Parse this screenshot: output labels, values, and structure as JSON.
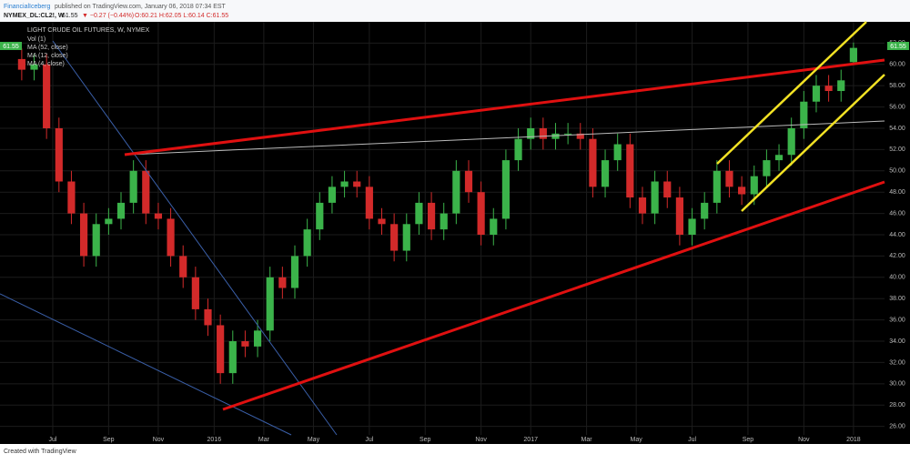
{
  "header": {
    "author": "FinancialIceberg",
    "published": "published on TradingView.com, January 06, 2018 07:34 EST",
    "symbol": "NYMEX_DL:CL2!, W",
    "last": "61.55",
    "change": "▼ −0.27 (−0.44%)",
    "ohlc": "O:60.21 H:62.05 L:60.14 C:61.55"
  },
  "chart_data": {
    "type": "candlestick",
    "title": "LIGHT CRUDE OIL FUTURES, W, NYMEX",
    "legend": [
      "Vol (1)",
      "MA (52, close)",
      "MA (12, close)",
      "MA (4, close)"
    ],
    "price_label": "61.55",
    "up_color": "#3bb34a",
    "down_color": "#d32a2a",
    "x": [
      2,
      4,
      6,
      8,
      10,
      12,
      14,
      16,
      18,
      20,
      22,
      24,
      26,
      28,
      30,
      32,
      34,
      36,
      38,
      40,
      42,
      44,
      46,
      48,
      50,
      52,
      54,
      56,
      58,
      60,
      62,
      64,
      66,
      68,
      70,
      72,
      74,
      76,
      78,
      80,
      82,
      84,
      86,
      88,
      90,
      92,
      94,
      96,
      98,
      100,
      102,
      104,
      106,
      108,
      110,
      112,
      114,
      116,
      118,
      120,
      122,
      124,
      126,
      128,
      130,
      132,
      134,
      136
    ],
    "open": [
      60.5,
      59.5,
      60,
      54,
      49,
      46,
      42,
      45,
      45.5,
      47,
      50,
      46,
      45.5,
      42,
      40,
      37,
      35.5,
      31,
      34,
      33.5,
      35,
      40,
      39,
      42,
      44.5,
      47,
      48.5,
      49,
      48.5,
      45.5,
      45,
      42.5,
      45,
      47,
      44.5,
      46,
      50,
      48,
      44,
      45.5,
      51,
      53,
      54,
      53,
      53.5,
      53.5,
      53,
      48.5,
      51,
      52.5,
      47.5,
      46,
      49,
      47.5,
      44,
      45.5,
      47,
      50,
      48.5,
      47.8,
      49.5,
      51,
      51.5,
      54,
      56.5,
      58,
      57.5,
      60.21
    ],
    "high": [
      61.5,
      61,
      61,
      55,
      50,
      47,
      46,
      46.5,
      48,
      51,
      51,
      47,
      46.5,
      43,
      41,
      38,
      36.5,
      35,
      35,
      36,
      41,
      41,
      43,
      45.5,
      48,
      49.5,
      50,
      50,
      49.5,
      46.5,
      46,
      46,
      48,
      48,
      47,
      51,
      51,
      49,
      46.5,
      52,
      54,
      55,
      55,
      54.5,
      54.5,
      54.5,
      54,
      52,
      53.5,
      53.5,
      48.5,
      50,
      50,
      48.5,
      46.5,
      48,
      51,
      51,
      49.5,
      50.5,
      52,
      52.5,
      55,
      57.5,
      59,
      59,
      59.5,
      62.05
    ],
    "low": [
      58.5,
      58.5,
      53,
      48,
      45,
      41,
      41,
      44,
      44.5,
      46,
      45,
      44.5,
      41,
      39,
      36,
      34.5,
      30,
      30,
      32.5,
      32.5,
      34,
      38,
      38,
      41,
      43.5,
      46,
      47.5,
      47.5,
      44.5,
      44,
      41.5,
      41.5,
      44,
      43.5,
      43.5,
      45,
      47,
      43,
      43,
      44.5,
      50,
      52,
      52,
      52,
      52.5,
      52,
      47.5,
      47.5,
      50,
      46.5,
      45,
      45,
      46.5,
      43,
      43,
      44.5,
      46,
      47.5,
      46.8,
      46.8,
      48.5,
      50,
      50.5,
      53,
      55.5,
      56.5,
      56.5,
      60.14
    ],
    "close": [
      59.5,
      60,
      54,
      49,
      46,
      42,
      45,
      45.5,
      47,
      50,
      46,
      45.5,
      42,
      40,
      37,
      35.5,
      31,
      34,
      33.5,
      35,
      40,
      39,
      42,
      44.5,
      47,
      48.5,
      49,
      48.5,
      45.5,
      45,
      42.5,
      45,
      47,
      44.5,
      46,
      50,
      48,
      44,
      45.5,
      51,
      53,
      54,
      53,
      53.5,
      53.5,
      53,
      48.5,
      51,
      52.5,
      47.5,
      46,
      49,
      47.5,
      44,
      45.5,
      47,
      50,
      48.5,
      47.8,
      49.5,
      51,
      51.5,
      54,
      56.5,
      58,
      57.5,
      58.5,
      61.55
    ],
    "xlim": [
      -1.5,
      141
    ],
    "xticks": [
      {
        "value": 7,
        "label": "Jul"
      },
      {
        "value": 16,
        "label": "Sep"
      },
      {
        "value": 24,
        "label": "Nov"
      },
      {
        "value": 33,
        "label": "2016"
      },
      {
        "value": 41,
        "label": "Mar"
      },
      {
        "value": 49,
        "label": "May"
      },
      {
        "value": 58,
        "label": "Jul"
      },
      {
        "value": 67,
        "label": "Sep"
      },
      {
        "value": 76,
        "label": "Nov"
      },
      {
        "value": 84,
        "label": "2017"
      },
      {
        "value": 93,
        "label": "Mar"
      },
      {
        "value": 101,
        "label": "May"
      },
      {
        "value": 110,
        "label": "Jul"
      },
      {
        "value": 119,
        "label": "Sep"
      },
      {
        "value": 128,
        "label": "Nov"
      },
      {
        "value": 136,
        "label": "2018"
      }
    ],
    "ylim": [
      25.2,
      62.8
    ],
    "yticks": [
      {
        "value": 26,
        "label": "26.00"
      },
      {
        "value": 28,
        "label": "28.00"
      },
      {
        "value": 30,
        "label": "30.00"
      },
      {
        "value": 32,
        "label": "32.00"
      },
      {
        "value": 34,
        "label": "34.00"
      },
      {
        "value": 36,
        "label": "36.00"
      },
      {
        "value": 38,
        "label": "38.00"
      },
      {
        "value": 40,
        "label": "40.00"
      },
      {
        "value": 42,
        "label": "42.00"
      },
      {
        "value": 44,
        "label": "44.00"
      },
      {
        "value": 46,
        "label": "46.00"
      },
      {
        "value": 48,
        "label": "48.00"
      },
      {
        "value": 50,
        "label": "50.00"
      },
      {
        "value": 52,
        "label": "52.00"
      },
      {
        "value": 54,
        "label": "54.00"
      },
      {
        "value": 56,
        "label": "56.00"
      },
      {
        "value": 58,
        "label": "58.00"
      },
      {
        "value": 60,
        "label": "60.00"
      },
      {
        "value": 62,
        "label": "62.00"
      }
    ],
    "grid": true
  },
  "footer": "Created with TradingView"
}
